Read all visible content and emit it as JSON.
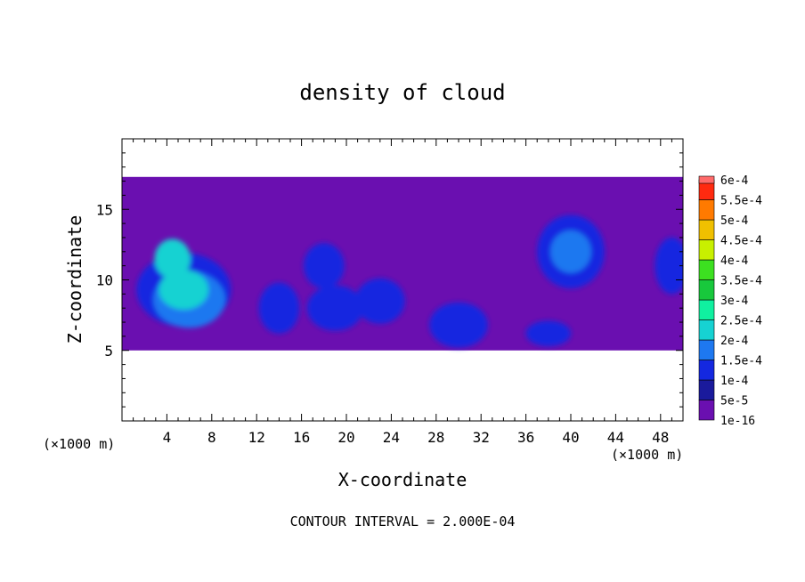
{
  "chart_data": {
    "type": "heatmap",
    "title": "density of cloud",
    "xlabel": "X-coordinate",
    "ylabel": "Z-coordinate",
    "x_unit_left": "(×1000 m)",
    "x_unit_right": "(×1000 m)",
    "xlim": [
      0,
      50
    ],
    "ylim": [
      0,
      20
    ],
    "xticks": [
      4,
      8,
      12,
      16,
      20,
      24,
      28,
      32,
      36,
      40,
      44,
      48
    ],
    "yticks": [
      5,
      10,
      15
    ],
    "footer": "CONTOUR INTERVAL = 2.000E-04",
    "colorbar": {
      "labels": [
        "1e-16",
        "5e-5",
        "1e-4",
        "1.5e-4",
        "2e-4",
        "2.5e-4",
        "3e-4",
        "3.5e-4",
        "4e-4",
        "4.5e-4",
        "5e-4",
        "5.5e-4",
        "6e-4"
      ],
      "colors": [
        "#6a0fb0",
        "#1a1a9c",
        "#1428e0",
        "#1e78f0",
        "#16d2d2",
        "#10f0a0",
        "#18c83c",
        "#3ce020",
        "#c8f000",
        "#f0c000",
        "#ff7a00",
        "#ff2a10",
        "#ff6a6a"
      ]
    },
    "cloud_layer": {
      "z_base": 5,
      "z_top": 17.3
    },
    "cells": [
      {
        "x": 5.5,
        "z": 9.3,
        "rx": 4.2,
        "rz": 2.6,
        "level": 2
      },
      {
        "x": 6,
        "z": 8.6,
        "rx": 3.2,
        "rz": 2.0,
        "level": 3
      },
      {
        "x": 5.5,
        "z": 9.3,
        "rx": 2.2,
        "rz": 1.4,
        "level": 4
      },
      {
        "x": 4.5,
        "z": 11.5,
        "rx": 1.6,
        "rz": 1.4,
        "level": 4
      },
      {
        "x": 14,
        "z": 8,
        "rx": 1.8,
        "rz": 1.8,
        "level": 2
      },
      {
        "x": 18,
        "z": 11,
        "rx": 1.8,
        "rz": 1.6,
        "level": 2
      },
      {
        "x": 19,
        "z": 8,
        "rx": 2.5,
        "rz": 1.6,
        "level": 2
      },
      {
        "x": 23,
        "z": 8.5,
        "rx": 2.2,
        "rz": 1.6,
        "level": 2
      },
      {
        "x": 30,
        "z": 6.8,
        "rx": 2.6,
        "rz": 1.6,
        "level": 2
      },
      {
        "x": 38,
        "z": 6.2,
        "rx": 2.0,
        "rz": 0.9,
        "level": 2
      },
      {
        "x": 40,
        "z": 12,
        "rx": 3.0,
        "rz": 2.6,
        "level": 2
      },
      {
        "x": 40,
        "z": 12,
        "rx": 1.8,
        "rz": 1.5,
        "level": 3
      },
      {
        "x": 49,
        "z": 11,
        "rx": 1.5,
        "rz": 2.0,
        "level": 2
      }
    ]
  }
}
